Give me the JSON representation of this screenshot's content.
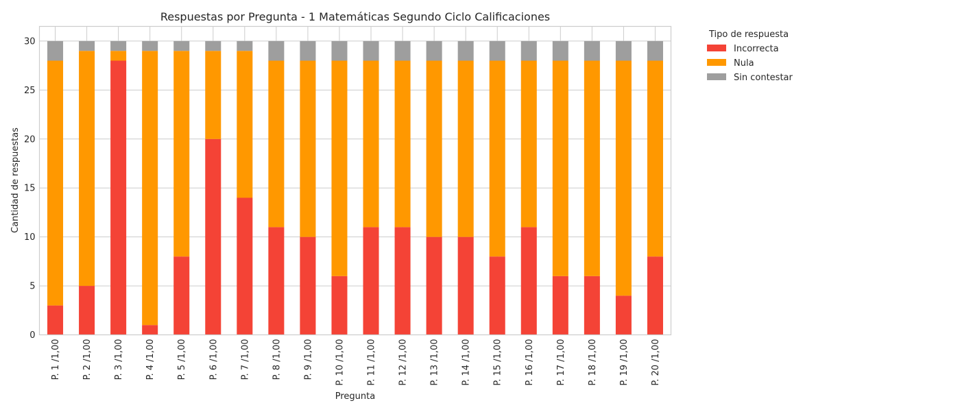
{
  "chart_data": {
    "type": "bar",
    "stacked": true,
    "title": "Respuestas por Pregunta - 1 Matemáticas  Segundo Ciclo Calificaciones",
    "xlabel": "Pregunta",
    "ylabel": "Cantidad de respuestas",
    "ylim": [
      0,
      31.5
    ],
    "yticks": [
      0,
      5,
      10,
      15,
      20,
      25,
      30
    ],
    "grid": true,
    "legend_title": "Tipo de respuesta",
    "legend_position": "outside-top-right",
    "categories": [
      "P. 1 /1,00",
      "P. 2 /1,00",
      "P. 3 /1,00",
      "P. 4 /1,00",
      "P. 5 /1,00",
      "P. 6 /1,00",
      "P. 7 /1,00",
      "P. 8 /1,00",
      "P. 9 /1,00",
      "P. 10 /1,00",
      "P. 11 /1,00",
      "P. 12 /1,00",
      "P. 13 /1,00",
      "P. 14 /1,00",
      "P. 15 /1,00",
      "P. 16 /1,00",
      "P. 17 /1,00",
      "P. 18 /1,00",
      "P. 19 /1,00",
      "P. 20 /1,00"
    ],
    "series": [
      {
        "name": "Incorrecta",
        "color": "#f44336",
        "values": [
          3,
          5,
          28,
          1,
          8,
          20,
          14,
          11,
          10,
          6,
          11,
          11,
          10,
          10,
          8,
          11,
          6,
          6,
          4,
          8
        ]
      },
      {
        "name": "Nula",
        "color": "#ff9800",
        "values": [
          25,
          24,
          1,
          28,
          21,
          9,
          15,
          17,
          18,
          22,
          17,
          17,
          18,
          18,
          20,
          17,
          22,
          22,
          24,
          20
        ]
      },
      {
        "name": "Sin contestar",
        "color": "#9e9e9e",
        "values": [
          2,
          1,
          1,
          1,
          1,
          1,
          1,
          2,
          2,
          2,
          2,
          2,
          2,
          2,
          2,
          2,
          2,
          2,
          2,
          2
        ]
      }
    ]
  }
}
